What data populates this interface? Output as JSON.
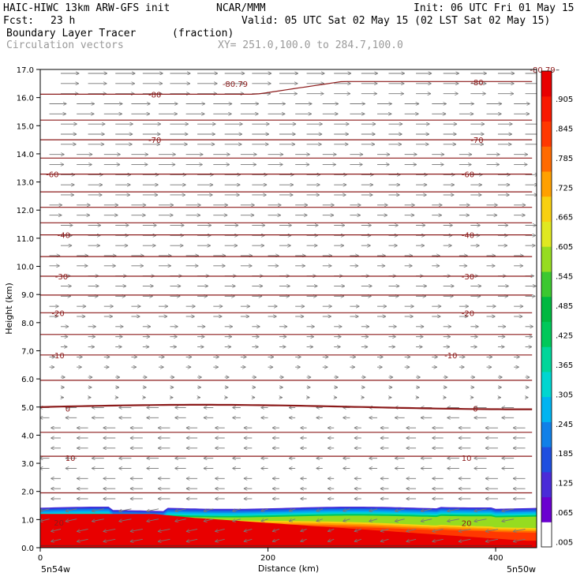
{
  "header": {
    "model": "HAIC-HIWC 13km ARW-GFS init",
    "org": "NCAR/MMM",
    "init": "Init: 06 UTC Fri 01 May 15",
    "fcst_label": "Fcst:",
    "fcst_value": "23 h",
    "valid": "Valid: 05 UTC Sat 02 May 15 (02 LST Sat 02 May 15)",
    "field_name": "Boundary Layer Tracer",
    "field_units": "(fraction)",
    "vector_label": "Circulation vectors",
    "xy_label": "XY= 251.0,100.0 to 284.7,100.0"
  },
  "chart_data": {
    "type": "heatmap",
    "xlabel": "Distance (km)",
    "ylabel": "Height (km)",
    "xlim": [
      0,
      436
    ],
    "ylim": [
      0,
      17
    ],
    "x_ticks": [
      "0",
      "200",
      "400"
    ],
    "y_ticks": [
      "0.0",
      "1.0",
      "2.0",
      "3.0",
      "4.0",
      "5.0",
      "6.0",
      "7.0",
      "8.0",
      "9.0",
      "10.0",
      "11.0",
      "12.0",
      "13.0",
      "14.0",
      "15.0",
      "16.0",
      "17.0"
    ],
    "x_end_labels": [
      "5n54w",
      "5n50w"
    ],
    "colorbar": {
      "labels": [
        ".005",
        ".065",
        ".125",
        ".185",
        ".245",
        ".305",
        ".365",
        ".425",
        ".485",
        ".545",
        ".605",
        ".665",
        ".725",
        ".785",
        ".845",
        ".905",
        "–"
      ],
      "colors": [
        "#ffffff",
        "#6a00d0",
        "#4a2bd8",
        "#1f4fe0",
        "#1080e8",
        "#00b4f0",
        "#00d6d0",
        "#00d69a",
        "#00c85a",
        "#00b840",
        "#3cc830",
        "#96dc20",
        "#e0e820",
        "#f8d010",
        "#ffa000",
        "#ff6a00",
        "#ff3800",
        "#f81800",
        "#e80000"
      ]
    },
    "contour_lines_km": [
      0.07,
      1.95,
      3.25,
      4.1,
      5.0,
      5.95,
      6.85,
      7.58,
      8.35,
      8.98,
      9.65,
      10.35,
      11.12,
      11.55,
      12.1,
      12.65,
      13.28,
      13.85,
      14.5,
      15.2,
      16.12
    ],
    "contour_labels": [
      {
        "text": "20",
        "x": 12,
        "y": 0.9
      },
      {
        "text": "20",
        "x": 370,
        "y": 0.88
      },
      {
        "text": "10",
        "x": 22,
        "y": 3.2
      },
      {
        "text": "10",
        "x": 370,
        "y": 3.2
      },
      {
        "text": "0",
        "x": 22,
        "y": 4.95
      },
      {
        "text": "0",
        "x": 380,
        "y": 4.95
      },
      {
        "text": "-10",
        "x": 10,
        "y": 6.85
      },
      {
        "text": "-10",
        "x": 355,
        "y": 6.85
      },
      {
        "text": "-20",
        "x": 10,
        "y": 8.35
      },
      {
        "text": "-20",
        "x": 370,
        "y": 8.35
      },
      {
        "text": "-30",
        "x": 13,
        "y": 9.65
      },
      {
        "text": "-30",
        "x": 370,
        "y": 9.65
      },
      {
        "text": "-40",
        "x": 15,
        "y": 11.12
      },
      {
        "text": "-40",
        "x": 370,
        "y": 11.12
      },
      {
        "text": "-60",
        "x": 5,
        "y": 13.28
      },
      {
        "text": "-60",
        "x": 370,
        "y": 13.28
      },
      {
        "text": "-70",
        "x": 95,
        "y": 14.5
      },
      {
        "text": "-70",
        "x": 378,
        "y": 14.5
      },
      {
        "text": "-80",
        "x": 95,
        "y": 16.12
      },
      {
        "text": "-80",
        "x": 378,
        "y": 16.55
      },
      {
        "text": "-80.79",
        "x": 160,
        "y": 16.5
      },
      {
        "text": "-80.79",
        "x": 430,
        "y": 17.0
      }
    ]
  }
}
